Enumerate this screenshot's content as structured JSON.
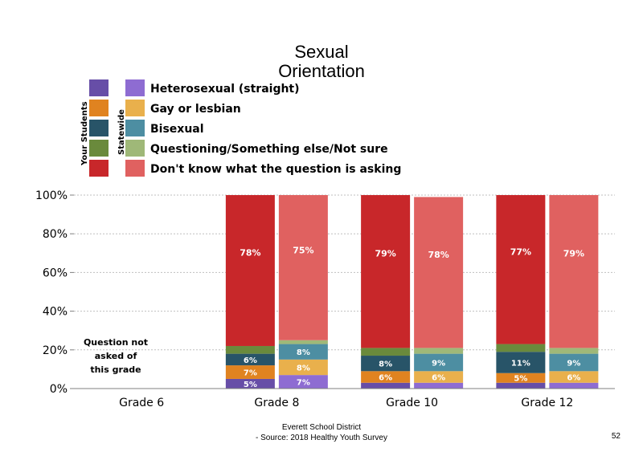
{
  "chart_data": {
    "type": "bar",
    "stacked": true,
    "title_lines": [
      "Sexual",
      "Orientation"
    ],
    "legend_group_labels": [
      "Your Students",
      "Statewide"
    ],
    "legend": [
      {
        "label": "Heterosexual (straight)",
        "school_color": "#674ea7",
        "state_color": "#8e6cd2"
      },
      {
        "label": "Gay or lesbian",
        "school_color": "#e08320",
        "state_color": "#e9b04c"
      },
      {
        "label": "Bisexual",
        "school_color": "#285468",
        "state_color": "#4d8ea2"
      },
      {
        "label": "Questioning/Something else/Not sure",
        "school_color": "#6a8a3c",
        "state_color": "#9fb878"
      },
      {
        "label": "Don't know what the question is asking",
        "school_color": "#c8272a",
        "state_color": "#e06160"
      }
    ],
    "categories": [
      "Grade 6",
      "Grade 8",
      "Grade 10",
      "Grade 12"
    ],
    "yticks": [
      "0%",
      "20%",
      "40%",
      "60%",
      "80%",
      "100%"
    ],
    "ylim": [
      0,
      100
    ],
    "gridlines": true,
    "note": [
      "Question not",
      "asked of",
      "this grade"
    ],
    "bars": [
      {
        "category": "Grade 8",
        "group": "Your Students",
        "segments": [
          {
            "value": 5,
            "label": "5%"
          },
          {
            "value": 7,
            "label": "7%"
          },
          {
            "value": 6,
            "label": "6%"
          },
          {
            "value": 4,
            "label": ""
          },
          {
            "value": 78,
            "label": "78%"
          }
        ]
      },
      {
        "category": "Grade 8",
        "group": "Statewide",
        "segments": [
          {
            "value": 7,
            "label": "7%"
          },
          {
            "value": 8,
            "label": "8%"
          },
          {
            "value": 8,
            "label": "8%"
          },
          {
            "value": 2,
            "label": ""
          },
          {
            "value": 75,
            "label": "75%"
          }
        ]
      },
      {
        "category": "Grade 10",
        "group": "Your Students",
        "segments": [
          {
            "value": 3,
            "label": ""
          },
          {
            "value": 6,
            "label": "6%"
          },
          {
            "value": 8,
            "label": "8%"
          },
          {
            "value": 4,
            "label": ""
          },
          {
            "value": 79,
            "label": "79%"
          }
        ]
      },
      {
        "category": "Grade 10",
        "group": "Statewide",
        "segments": [
          {
            "value": 3,
            "label": ""
          },
          {
            "value": 6,
            "label": "6%"
          },
          {
            "value": 9,
            "label": "9%"
          },
          {
            "value": 3,
            "label": ""
          },
          {
            "value": 78,
            "label": "78%"
          }
        ]
      },
      {
        "category": "Grade 12",
        "group": "Your Students",
        "segments": [
          {
            "value": 3,
            "label": ""
          },
          {
            "value": 5,
            "label": "5%"
          },
          {
            "value": 11,
            "label": "11%"
          },
          {
            "value": 4,
            "label": ""
          },
          {
            "value": 77,
            "label": "77%"
          }
        ]
      },
      {
        "category": "Grade 12",
        "group": "Statewide",
        "segments": [
          {
            "value": 3,
            "label": ""
          },
          {
            "value": 6,
            "label": "6%"
          },
          {
            "value": 9,
            "label": "9%"
          },
          {
            "value": 3,
            "label": ""
          },
          {
            "value": 79,
            "label": "79%"
          }
        ]
      }
    ]
  },
  "footer": {
    "line1": "Everett School District",
    "line2": "- Source: 2018 Healthy  Youth Survey",
    "page_number": "52"
  }
}
